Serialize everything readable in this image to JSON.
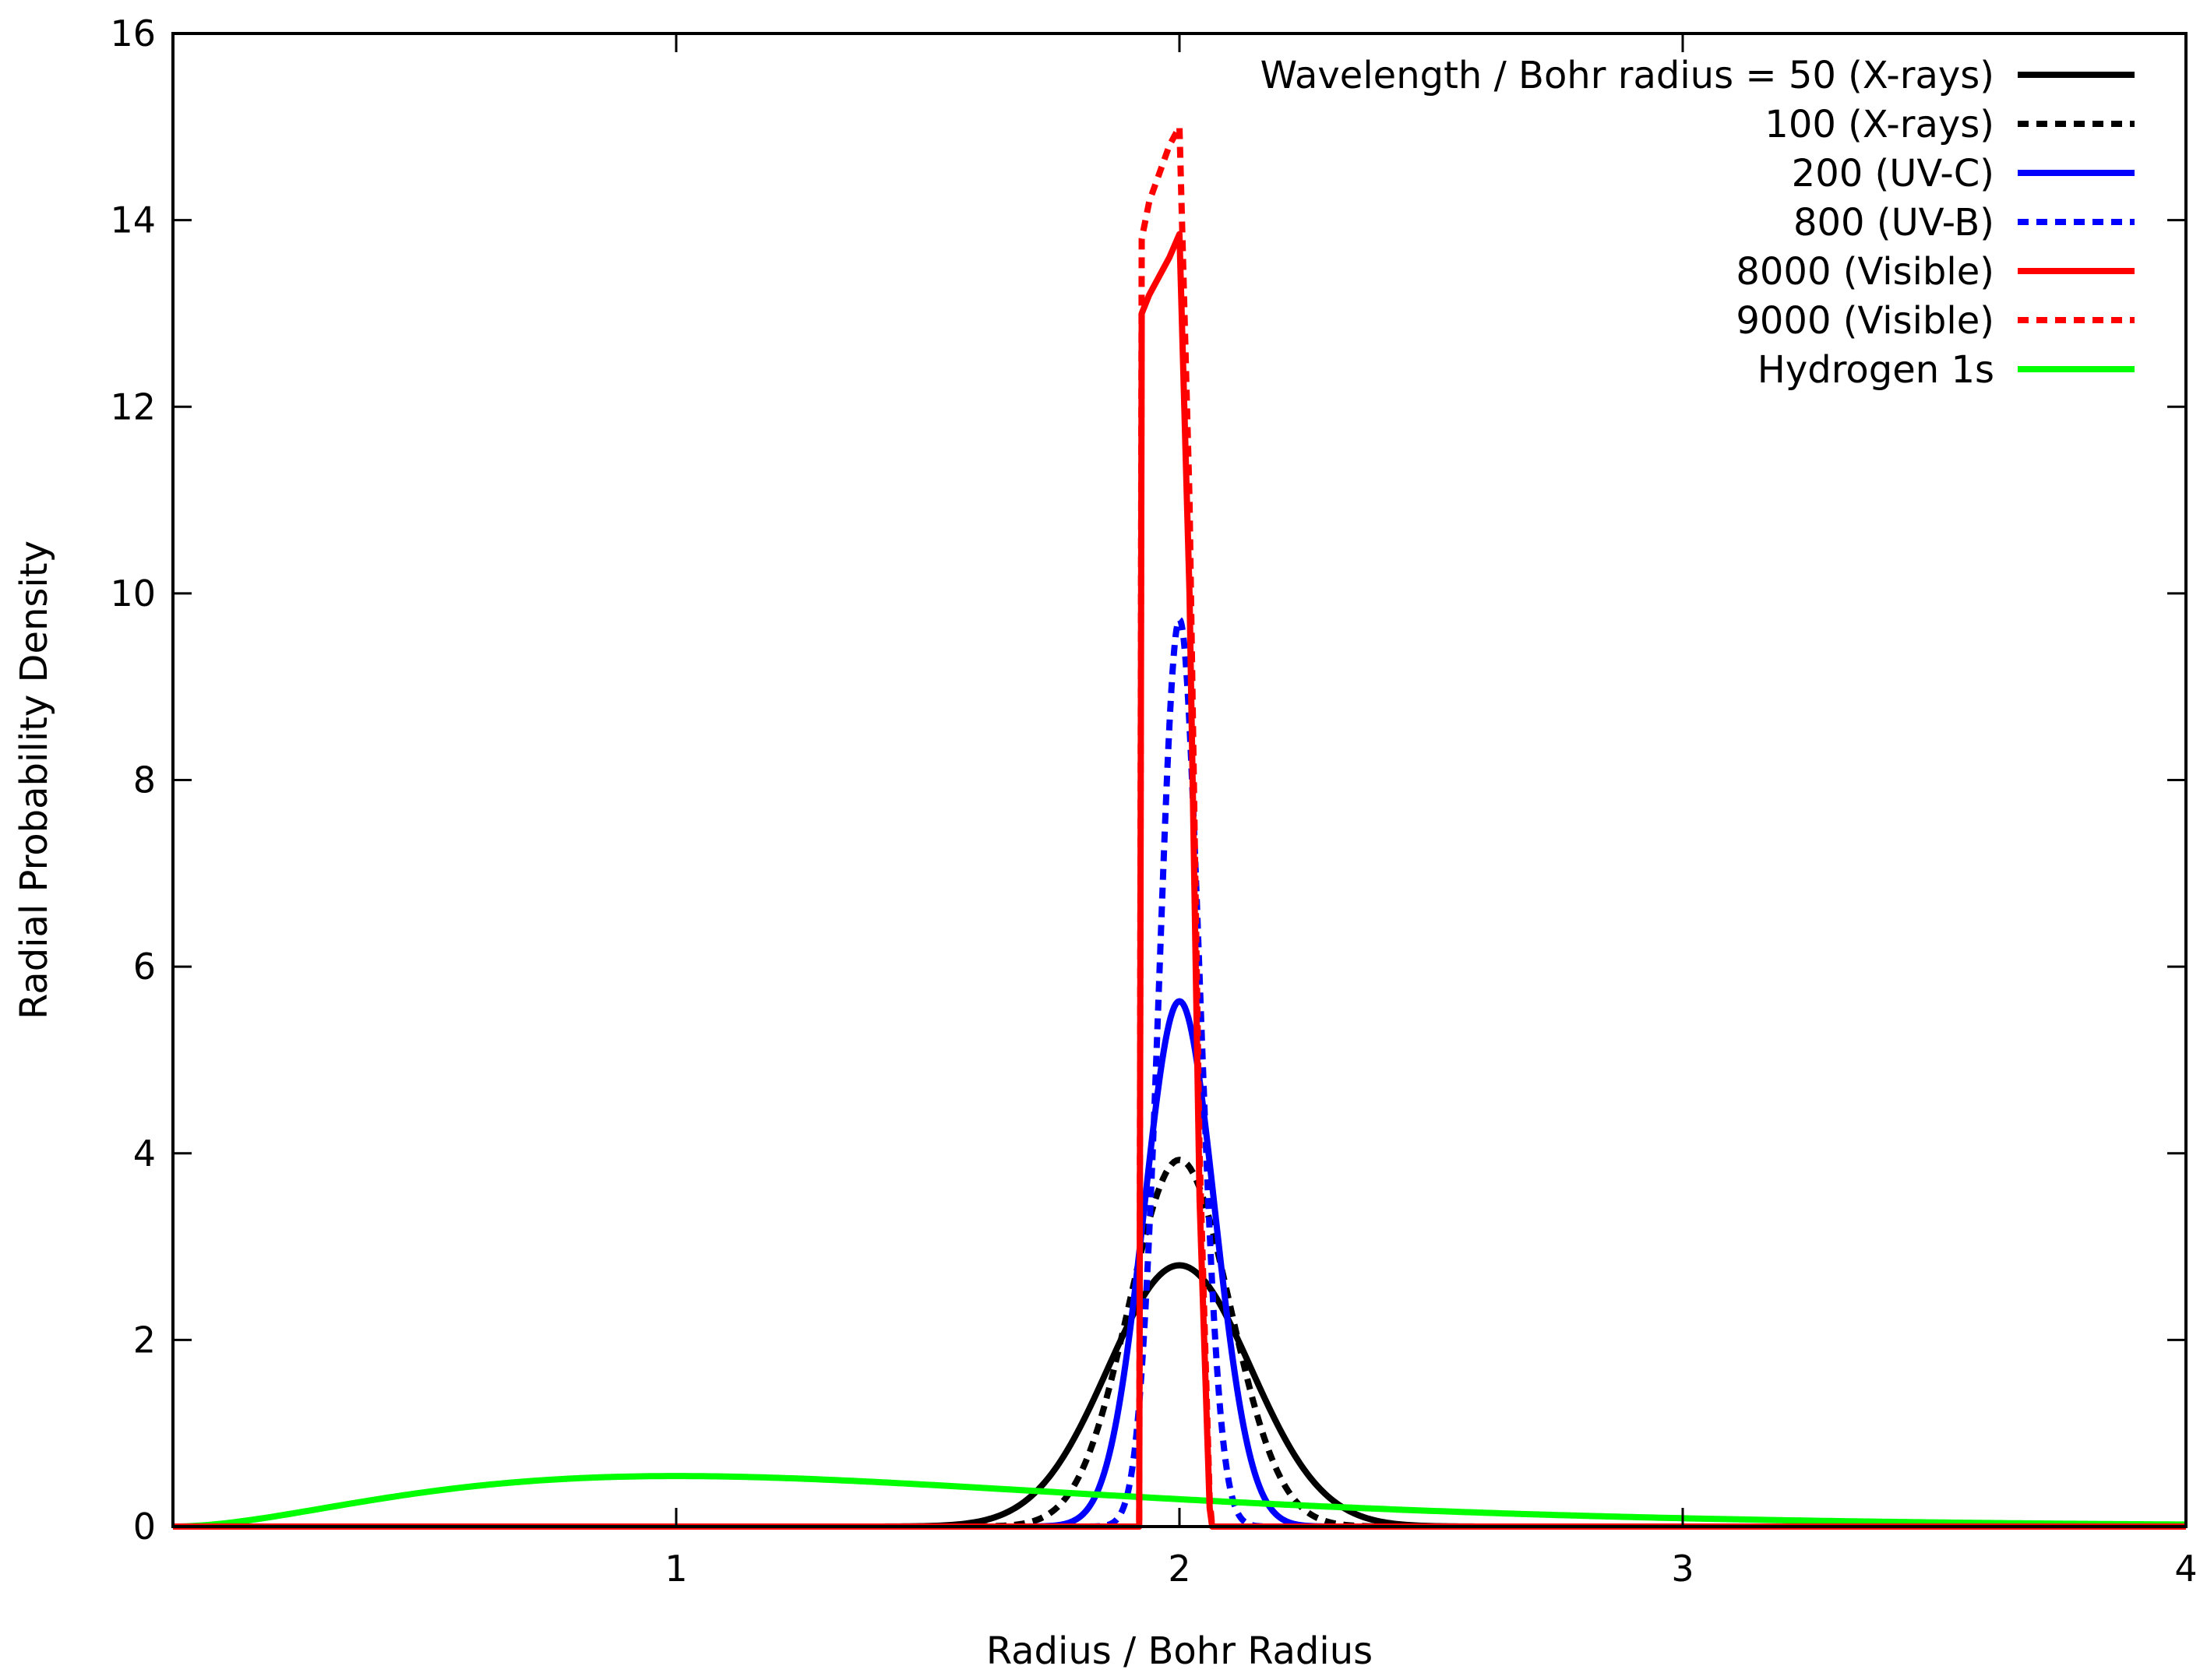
{
  "chart_data": {
    "type": "line",
    "title": "",
    "xlabel": "Radius / Bohr Radius",
    "ylabel": "Radial Probability Density",
    "xlim": [
      0,
      4
    ],
    "ylim": [
      0,
      16
    ],
    "xticks": [
      1,
      2,
      3,
      4
    ],
    "yticks": [
      0,
      2,
      4,
      6,
      8,
      10,
      12,
      14,
      16
    ],
    "grid": false,
    "legend_position": "top-right",
    "series": [
      {
        "name": "Wavelength / Bohr radius = 50 (X-rays)",
        "color": "#000000",
        "dash": "solid",
        "kind": "gaussian",
        "peak_x": 2.0,
        "peak_y": 2.8,
        "sigma": 0.142,
        "cutoff": 0.85
      },
      {
        "name": "100 (X-rays)",
        "color": "#000000",
        "dash": "dashed",
        "kind": "gaussian",
        "peak_x": 2.0,
        "peak_y": 3.93,
        "sigma": 0.1,
        "cutoff": 0.7
      },
      {
        "name": "200 (UV-C)",
        "color": "#0000ff",
        "dash": "solid",
        "kind": "gaussian",
        "peak_x": 2.0,
        "peak_y": 5.63,
        "sigma": 0.07,
        "cutoff": 0.45
      },
      {
        "name": "800 (UV-B)",
        "color": "#0000ff",
        "dash": "dashed",
        "kind": "gaussian",
        "peak_x": 2.0,
        "peak_y": 9.72,
        "sigma": 0.04,
        "cutoff": 0.2
      },
      {
        "name": "8000 (Visible)",
        "color": "#ff0000",
        "dash": "solid",
        "kind": "points",
        "x": [
          0,
          1.92,
          1.925,
          1.94,
          1.96,
          1.98,
          2.0,
          2.02,
          2.04,
          2.06,
          2.065,
          4.0
        ],
        "y": [
          0,
          0,
          13.0,
          13.2,
          13.4,
          13.6,
          13.85,
          10.0,
          3.5,
          0.2,
          0,
          0
        ]
      },
      {
        "name": "9000 (Visible)",
        "color": "#ff0000",
        "dash": "dashed",
        "kind": "points",
        "x": [
          0,
          1.92,
          1.925,
          1.94,
          1.96,
          1.98,
          2.0,
          2.02,
          2.04,
          2.06,
          2.065,
          4.0
        ],
        "y": [
          0,
          0,
          13.8,
          14.2,
          14.5,
          14.8,
          15.0,
          11.0,
          4.0,
          0.3,
          0,
          0
        ]
      },
      {
        "name": "Hydrogen 1s",
        "color": "#00ff00",
        "dash": "solid",
        "kind": "hydrogen1s"
      }
    ]
  }
}
